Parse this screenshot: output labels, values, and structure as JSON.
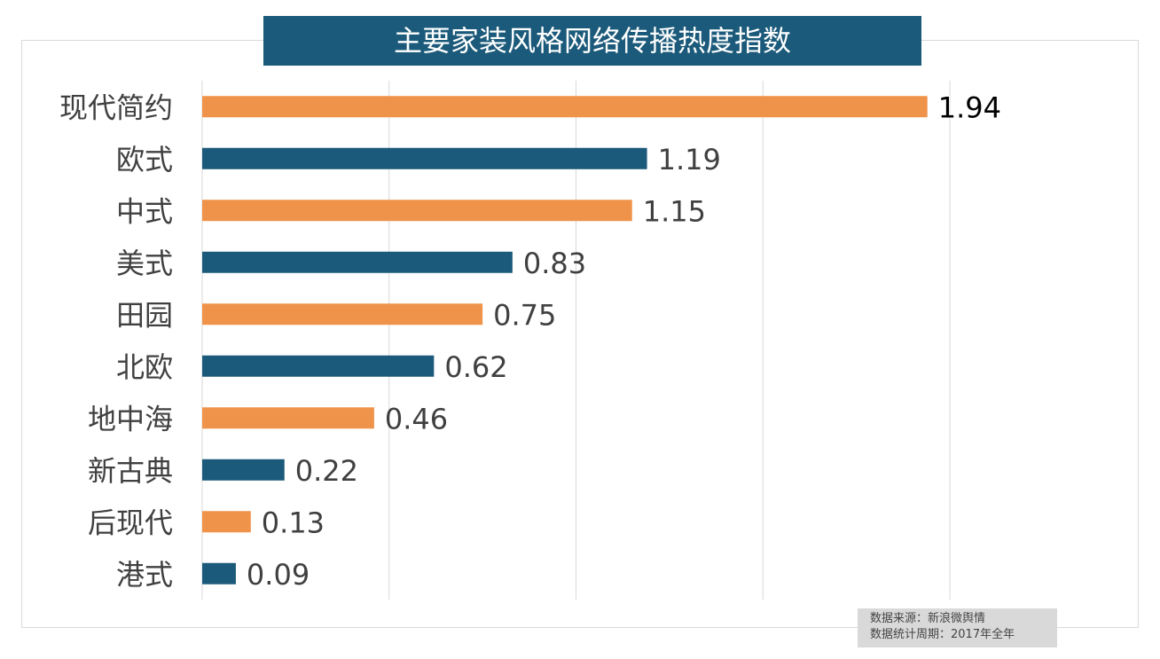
{
  "chart_data": {
    "type": "bar",
    "orientation": "horizontal",
    "title": "主要家装风格网络传播热度指数",
    "categories": [
      "现代简约",
      "欧式",
      "中式",
      "美式",
      "田园",
      "北欧",
      "地中海",
      "新古典",
      "后现代",
      "港式"
    ],
    "values": [
      1.94,
      1.19,
      1.15,
      0.83,
      0.75,
      0.62,
      0.46,
      0.22,
      0.13,
      0.09
    ],
    "bar_colors": [
      "#f0934a",
      "#1b5a7a"
    ],
    "xlim": [
      0,
      2
    ],
    "grid": true,
    "x_tick_labels_shown": false
  },
  "source": {
    "line1": "数据来源：新浪微舆情",
    "line2": "数据统计周期：2017年全年"
  }
}
